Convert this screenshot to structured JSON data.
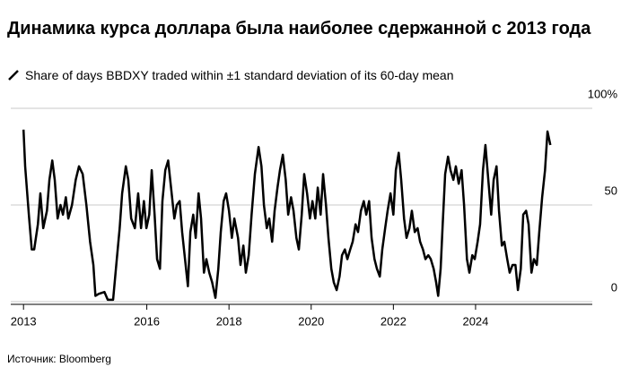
{
  "chart_data": {
    "type": "line",
    "title": "Динамика курса доллара была наиболее сдержанной с 2013 года",
    "subtitle": "Share of days BBDXY traded within ±1 standard deviation of its 60-day mean",
    "source": "Источник: Bloomberg",
    "color": "#000000",
    "grid": true,
    "xlim": [
      2012.69,
      2026.84
    ],
    "ylim": [
      0,
      100
    ],
    "xticks": [
      2013,
      2016,
      2018,
      2020,
      2022,
      2024
    ],
    "yticks": [
      0,
      50,
      {
        "value": 100,
        "label": "100%"
      }
    ],
    "x": [
      2013.0,
      2013.04,
      2013.13,
      2013.2,
      2013.26,
      2013.35,
      2013.41,
      2013.48,
      2013.57,
      2013.63,
      2013.7,
      2013.76,
      2013.83,
      2013.9,
      2013.96,
      2014.03,
      2014.09,
      2014.18,
      2014.27,
      2014.35,
      2014.44,
      2014.53,
      2014.62,
      2014.7,
      2014.75,
      2014.83,
      2014.97,
      2015.05,
      2015.18,
      2015.27,
      2015.34,
      2015.4,
      2015.49,
      2015.55,
      2015.62,
      2015.71,
      2015.79,
      2015.86,
      2015.93,
      2015.99,
      2016.06,
      2016.12,
      2016.19,
      2016.25,
      2016.32,
      2016.38,
      2016.45,
      2016.52,
      2016.58,
      2016.67,
      2016.73,
      2016.8,
      2016.86,
      2016.93,
      2017.0,
      2017.06,
      2017.13,
      2017.19,
      2017.26,
      2017.32,
      2017.39,
      2017.45,
      2017.52,
      2017.59,
      2017.67,
      2017.74,
      2017.8,
      2017.87,
      2017.93,
      2018.0,
      2018.07,
      2018.13,
      2018.22,
      2018.28,
      2018.35,
      2018.41,
      2018.48,
      2018.55,
      2018.63,
      2018.72,
      2018.79,
      2018.85,
      2018.92,
      2018.98,
      2019.05,
      2019.11,
      2019.18,
      2019.24,
      2019.31,
      2019.38,
      2019.44,
      2019.51,
      2019.57,
      2019.64,
      2019.7,
      2019.77,
      2019.83,
      2019.9,
      2019.97,
      2020.03,
      2020.1,
      2020.16,
      2020.23,
      2020.29,
      2020.36,
      2020.42,
      2020.49,
      2020.55,
      2020.62,
      2020.69,
      2020.75,
      2020.82,
      2020.88,
      2020.95,
      2021.01,
      2021.08,
      2021.14,
      2021.21,
      2021.28,
      2021.34,
      2021.41,
      2021.47,
      2021.54,
      2021.6,
      2021.67,
      2021.73,
      2021.8,
      2021.86,
      2021.93,
      2022.0,
      2022.06,
      2022.13,
      2022.19,
      2022.26,
      2022.32,
      2022.39,
      2022.45,
      2022.52,
      2022.59,
      2022.65,
      2022.72,
      2022.78,
      2022.85,
      2022.91,
      2022.98,
      2023.04,
      2023.09,
      2023.15,
      2023.2,
      2023.26,
      2023.33,
      2023.39,
      2023.46,
      2023.52,
      2023.59,
      2023.66,
      2023.72,
      2023.79,
      2023.85,
      2023.92,
      2023.98,
      2024.05,
      2024.11,
      2024.18,
      2024.24,
      2024.31,
      2024.38,
      2024.44,
      2024.51,
      2024.57,
      2024.64,
      2024.7,
      2024.77,
      2024.83,
      2024.9,
      2024.97,
      2025.03,
      2025.1,
      2025.16,
      2025.23,
      2025.29,
      2025.36,
      2025.42,
      2025.49,
      2025.55,
      2025.62,
      2025.69,
      2025.75,
      2025.82
    ],
    "values": [
      89,
      70,
      45,
      27,
      27,
      40,
      56,
      38,
      47,
      63,
      73,
      63,
      43,
      50,
      45,
      54,
      43,
      50,
      63,
      70,
      66,
      50,
      31,
      19,
      3,
      4,
      5,
      1,
      1,
      22,
      38,
      56,
      70,
      63,
      43,
      38,
      56,
      38,
      52,
      38,
      45,
      68,
      45,
      22,
      17,
      52,
      68,
      73,
      61,
      43,
      50,
      52,
      36,
      22,
      8,
      36,
      45,
      33,
      56,
      43,
      15,
      22,
      15,
      10,
      2,
      17,
      36,
      52,
      56,
      47,
      33,
      43,
      33,
      19,
      29,
      15,
      24,
      45,
      66,
      80,
      70,
      50,
      38,
      43,
      31,
      47,
      59,
      68,
      76,
      63,
      45,
      54,
      47,
      33,
      27,
      45,
      66,
      56,
      43,
      52,
      43,
      59,
      45,
      66,
      50,
      33,
      17,
      10,
      6,
      13,
      24,
      27,
      22,
      27,
      31,
      40,
      36,
      47,
      52,
      45,
      52,
      33,
      22,
      17,
      13,
      27,
      38,
      47,
      56,
      45,
      68,
      77,
      63,
      43,
      33,
      38,
      47,
      36,
      38,
      31,
      27,
      22,
      24,
      22,
      17,
      10,
      3,
      17,
      40,
      66,
      75,
      68,
      63,
      70,
      61,
      68,
      50,
      22,
      15,
      24,
      22,
      31,
      40,
      68,
      81,
      63,
      45,
      63,
      70,
      47,
      29,
      31,
      22,
      15,
      19,
      19,
      6,
      17,
      45,
      47,
      40,
      15,
      22,
      19,
      36,
      54,
      68,
      88,
      81
    ]
  }
}
